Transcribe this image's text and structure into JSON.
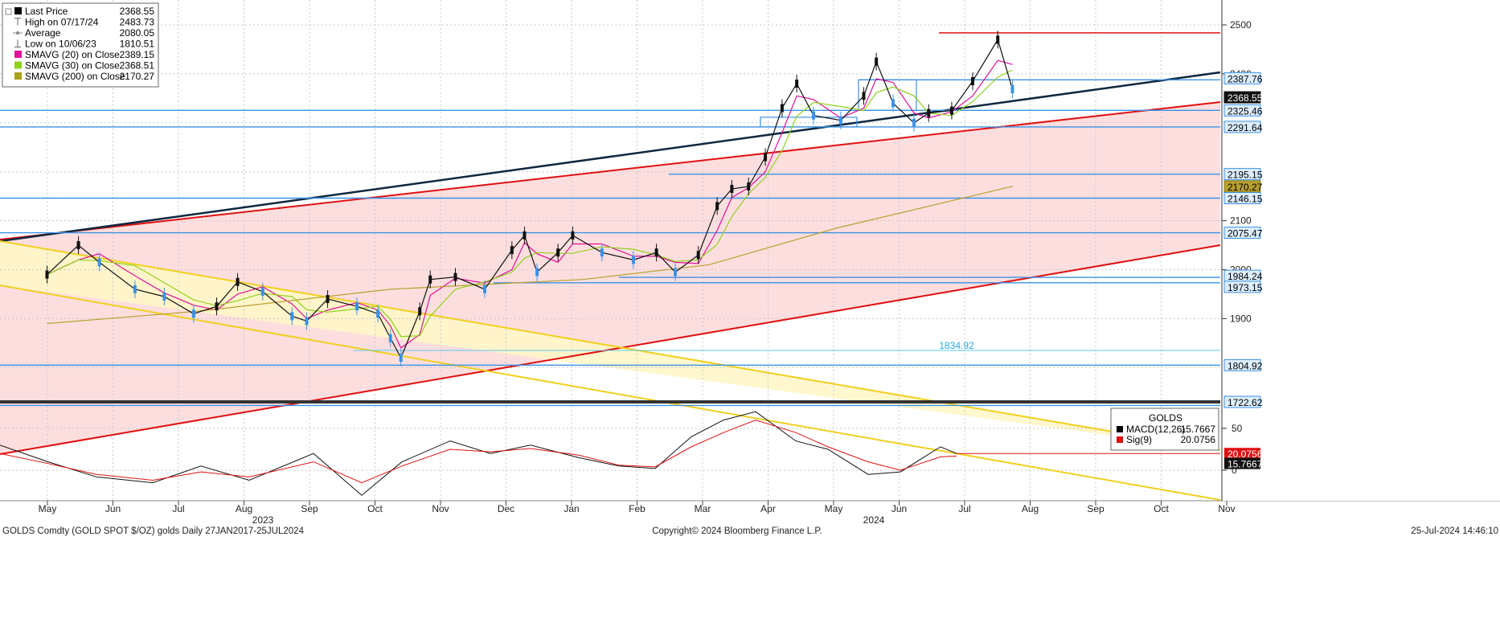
{
  "legend": [
    {
      "label": "Last Price",
      "value": "2368.55",
      "color": "#000000",
      "marker": "square"
    },
    {
      "label": "High on 07/17/24",
      "value": "2483.73",
      "color": "#666666",
      "marker": "high"
    },
    {
      "label": "Average",
      "value": "2080.05",
      "color": "#888888",
      "marker": "avg"
    },
    {
      "label": "Low on 10/06/23",
      "value": "1810.51",
      "color": "#666666",
      "marker": "low"
    },
    {
      "label": "SMAVG (20)  on Close",
      "value": "2389.15",
      "color": "#e0109a",
      "marker": "square"
    },
    {
      "label": "SMAVG (30)  on Close",
      "value": "2368.51",
      "color": "#8ed21a",
      "marker": "square"
    },
    {
      "label": "SMAVG (200)  on Close",
      "value": "2170.27",
      "color": "#a8a21a",
      "marker": "square"
    }
  ],
  "macd_legend": {
    "title": "GOLDS",
    "items": [
      {
        "label": "MACD(12,26)",
        "value": "15.7667",
        "color": "#000000"
      },
      {
        "label": "Sig(9)",
        "value": "20.0756",
        "color": "#e01010"
      }
    ]
  },
  "price_axis_ticks": [
    "2500",
    "2400",
    "2100",
    "2000",
    "1900"
  ],
  "macd_axis_ticks": [
    "50",
    "0"
  ],
  "price_tags": [
    {
      "text": "2387.76",
      "style": "blue"
    },
    {
      "text": "2368.55",
      "style": "black"
    },
    {
      "text": "2325.46",
      "style": "blue"
    },
    {
      "text": "2291.64",
      "style": "blue"
    },
    {
      "text": "2195.15",
      "style": "blue"
    },
    {
      "text": "2170.27",
      "style": "olive"
    },
    {
      "text": "2146.15",
      "style": "blue"
    },
    {
      "text": "2075.47",
      "style": "blue"
    },
    {
      "text": "1984.24",
      "style": "blue"
    },
    {
      "text": "1973.15",
      "style": "blue"
    },
    {
      "text": "1804.92",
      "style": "blue"
    },
    {
      "text": "1722.62",
      "style": "blue"
    }
  ],
  "macd_tags": [
    {
      "text": "20.0756",
      "style": "red"
    },
    {
      "text": "15.7667",
      "style": "black"
    }
  ],
  "annotation": {
    "text": "1834.92",
    "color": "#29a8e0"
  },
  "months": [
    "May",
    "Jun",
    "Jul",
    "Aug",
    "Sep",
    "Oct",
    "Nov",
    "Dec",
    "Jan",
    "Feb",
    "Mar",
    "Apr",
    "May",
    "Jun",
    "Jul",
    "Aug",
    "Sep",
    "Oct",
    "Nov"
  ],
  "years": [
    "2023",
    "2024"
  ],
  "footer": {
    "left": "GOLDS Comdty (GOLD SPOT $/OZ) golds  Daily 27JAN2017-25JUL2024",
    "center": "Copyright© 2024 Bloomberg Finance L.P.",
    "right": "25-Jul-2024 14:46:10"
  },
  "chart_data": {
    "type": "line",
    "title": "GOLDS Comdty (GOLD SPOT $/OZ)",
    "y_axis_ticks": [
      2500,
      2400,
      2100,
      2000,
      1900
    ],
    "x_months": [
      "May",
      "Jun",
      "Jul",
      "Aug",
      "Sep",
      "Oct",
      "Nov",
      "Dec",
      "Jan",
      "Feb",
      "Mar",
      "Apr",
      "May",
      "Jun",
      "Jul",
      "Aug",
      "Sep",
      "Oct",
      "Nov"
    ],
    "x_years": [
      "2023",
      "2024"
    ],
    "series": [
      {
        "name": "Last Price",
        "points": [
          [
            "2023-04-20",
            1990
          ],
          [
            "2023-05-05",
            2050
          ],
          [
            "2023-05-15",
            2015
          ],
          [
            "2023-06-01",
            1960
          ],
          [
            "2023-06-15",
            1945
          ],
          [
            "2023-06-29",
            1910
          ],
          [
            "2023-07-10",
            1925
          ],
          [
            "2023-07-20",
            1975
          ],
          [
            "2023-08-01",
            1955
          ],
          [
            "2023-08-15",
            1905
          ],
          [
            "2023-08-22",
            1895
          ],
          [
            "2023-09-01",
            1940
          ],
          [
            "2023-09-15",
            1925
          ],
          [
            "2023-09-25",
            1910
          ],
          [
            "2023-10-01",
            1860
          ],
          [
            "2023-10-06",
            1820
          ],
          [
            "2023-10-15",
            1915
          ],
          [
            "2023-10-20",
            1980
          ],
          [
            "2023-11-01",
            1985
          ],
          [
            "2023-11-15",
            1960
          ],
          [
            "2023-11-28",
            2040
          ],
          [
            "2023-12-04",
            2070
          ],
          [
            "2023-12-10",
            1995
          ],
          [
            "2023-12-20",
            2035
          ],
          [
            "2023-12-27",
            2070
          ],
          [
            "2024-01-10",
            2035
          ],
          [
            "2024-01-25",
            2020
          ],
          [
            "2024-02-05",
            2035
          ],
          [
            "2024-02-14",
            1995
          ],
          [
            "2024-02-25",
            2030
          ],
          [
            "2024-03-05",
            2130
          ],
          [
            "2024-03-12",
            2165
          ],
          [
            "2024-03-20",
            2170
          ],
          [
            "2024-03-28",
            2230
          ],
          [
            "2024-04-05",
            2330
          ],
          [
            "2024-04-12",
            2380
          ],
          [
            "2024-04-20",
            2315
          ],
          [
            "2024-05-03",
            2305
          ],
          [
            "2024-05-14",
            2355
          ],
          [
            "2024-05-20",
            2425
          ],
          [
            "2024-05-28",
            2340
          ],
          [
            "2024-06-07",
            2300
          ],
          [
            "2024-06-14",
            2320
          ],
          [
            "2024-06-25",
            2325
          ],
          [
            "2024-07-05",
            2385
          ],
          [
            "2024-07-17",
            2470
          ],
          [
            "2024-07-24",
            2368.55
          ]
        ]
      },
      {
        "name": "SMAVG (20)  on Close",
        "last": 2389.15
      },
      {
        "name": "SMAVG (30)  on Close",
        "last": 2368.51
      },
      {
        "name": "SMAVG (200)  on Close",
        "points": [
          [
            "2023-04-20",
            1890
          ],
          [
            "2023-07-01",
            1915
          ],
          [
            "2023-10-01",
            1960
          ],
          [
            "2024-01-01",
            1980
          ],
          [
            "2024-03-01",
            2010
          ],
          [
            "2024-05-01",
            2085
          ],
          [
            "2024-07-24",
            2170.27
          ]
        ]
      }
    ],
    "horizontal_levels": [
      2483.73,
      2387.76,
      2325.46,
      2291.64,
      2195.15,
      2146.15,
      2075.47,
      1984.24,
      1973.15,
      1834.92,
      1804.92,
      1722.62
    ],
    "channels": [
      {
        "name": "red uptrend channel",
        "color": "#e01010"
      },
      {
        "name": "navy trendline",
        "color": "#0e2740"
      },
      {
        "name": "yellow downtrend channel",
        "color": "#f0d020"
      }
    ],
    "macd": {
      "macd_last": 15.7667,
      "signal_last": 20.0756,
      "y_ticks": [
        50,
        0
      ]
    }
  }
}
